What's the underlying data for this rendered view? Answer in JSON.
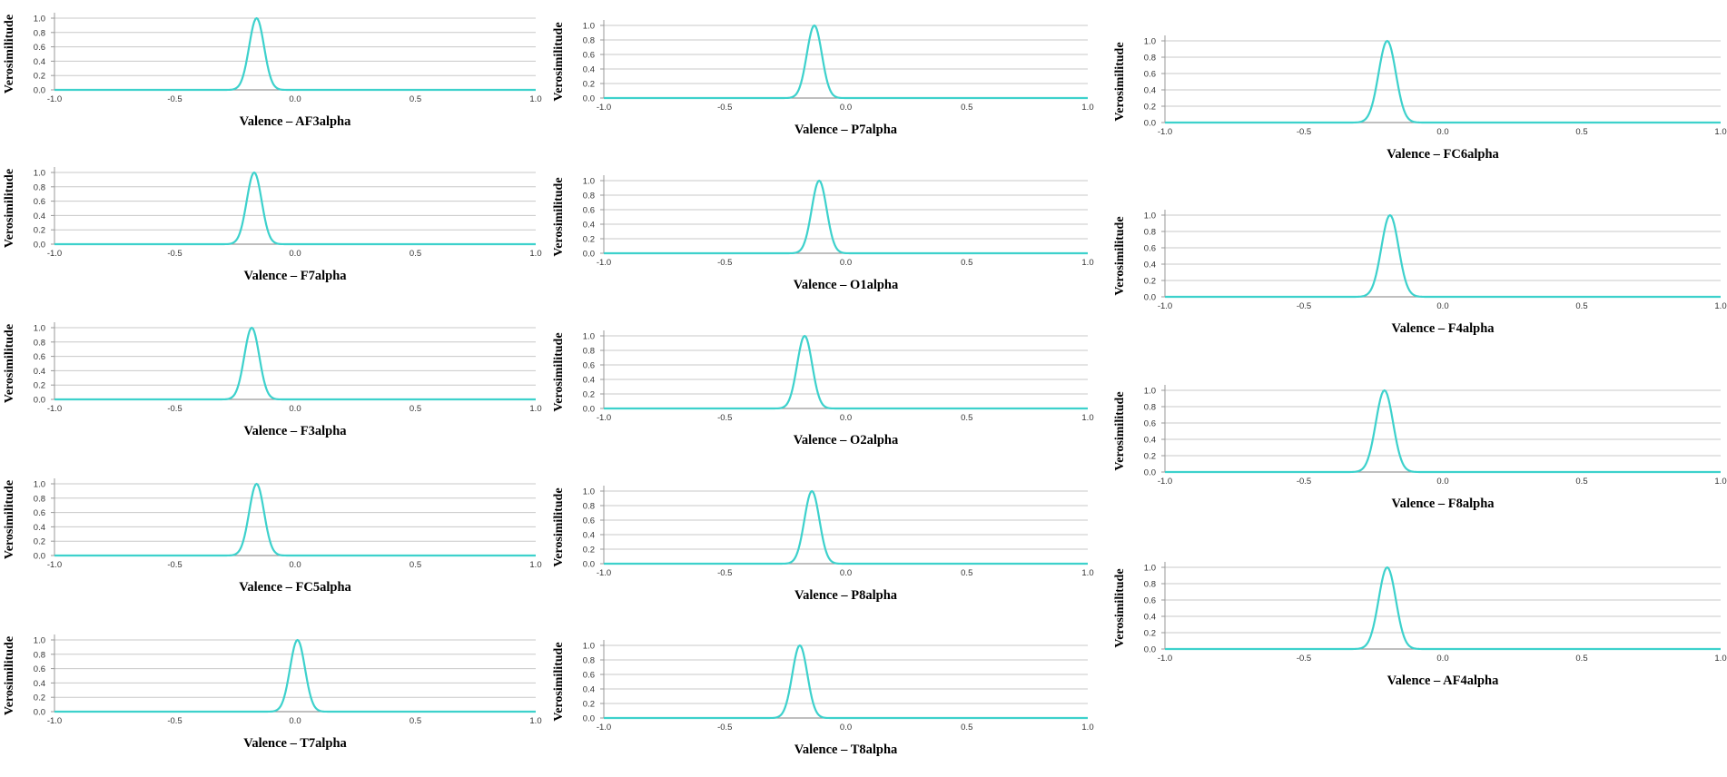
{
  "colors": {
    "curve": "#3dd1cc",
    "grid": "#c8c8c8",
    "axis": "#999999"
  },
  "chart_data": [
    {
      "type": "line",
      "panel": "AF3alpha",
      "xlabel": "Valence – AF3alpha",
      "ylabel": "Verosimilitude",
      "xlim": [
        -1.0,
        1.0
      ],
      "ylim": [
        0,
        1.0
      ],
      "xticks": [
        "-1.0",
        "-0.5",
        "0.0",
        "0.5",
        "1.0"
      ],
      "yticks": [
        "0.0",
        "0.2",
        "0.4",
        "0.6",
        "0.8",
        "1.0"
      ],
      "grid": true,
      "peak_x": -0.16,
      "peak_y": 1.0
    },
    {
      "type": "line",
      "panel": "F7alpha",
      "xlabel": "Valence – F7alpha",
      "ylabel": "Verosimilitude",
      "xlim": [
        -1.0,
        1.0
      ],
      "ylim": [
        0,
        1.0
      ],
      "xticks": [
        "-1.0",
        "-0.5",
        "0.0",
        "0.5",
        "1.0"
      ],
      "yticks": [
        "0.0",
        "0.2",
        "0.4",
        "0.6",
        "0.8",
        "1.0"
      ],
      "grid": true,
      "peak_x": -0.17,
      "peak_y": 1.0
    },
    {
      "type": "line",
      "panel": "F3alpha",
      "xlabel": "Valence – F3alpha",
      "ylabel": "Verosimilitude",
      "xlim": [
        -1.0,
        1.0
      ],
      "ylim": [
        0,
        1.0
      ],
      "xticks": [
        "-1.0",
        "-0.5",
        "0.0",
        "0.5",
        "1.0"
      ],
      "yticks": [
        "0.0",
        "0.2",
        "0.4",
        "0.6",
        "0.8",
        "1.0"
      ],
      "grid": true,
      "peak_x": -0.18,
      "peak_y": 1.0
    },
    {
      "type": "line",
      "panel": "FC5alpha",
      "xlabel": "Valence – FC5alpha",
      "ylabel": "Verosimilitude",
      "xlim": [
        -1.0,
        1.0
      ],
      "ylim": [
        0,
        1.0
      ],
      "xticks": [
        "-1.0",
        "-0.5",
        "0.0",
        "0.5",
        "1.0"
      ],
      "yticks": [
        "0.0",
        "0.2",
        "0.4",
        "0.6",
        "0.8",
        "1.0"
      ],
      "grid": true,
      "peak_x": -0.16,
      "peak_y": 1.0
    },
    {
      "type": "line",
      "panel": "T7alpha",
      "xlabel": "Valence – T7alpha",
      "ylabel": "Verosimilitude",
      "xlim": [
        -1.0,
        1.0
      ],
      "ylim": [
        0,
        1.0
      ],
      "xticks": [
        "-1.0",
        "-0.5",
        "0.0",
        "0.5",
        "1.0"
      ],
      "yticks": [
        "0.0",
        "0.2",
        "0.4",
        "0.6",
        "0.8",
        "1.0"
      ],
      "grid": true,
      "peak_x": 0.01,
      "peak_y": 1.0
    },
    {
      "type": "line",
      "panel": "P7alpha",
      "xlabel": "Valence – P7alpha",
      "ylabel": "Verosimilitude",
      "xlim": [
        -1.0,
        1.0
      ],
      "ylim": [
        0,
        1.0
      ],
      "xticks": [
        "-1.0",
        "-0.5",
        "0.0",
        "0.5",
        "1.0"
      ],
      "yticks": [
        "0.0",
        "0.2",
        "0.4",
        "0.6",
        "0.8",
        "1.0"
      ],
      "grid": true,
      "peak_x": -0.13,
      "peak_y": 1.0
    },
    {
      "type": "line",
      "panel": "O1alpha",
      "xlabel": "Valence – O1alpha",
      "ylabel": "Verosimilitude",
      "xlim": [
        -1.0,
        1.0
      ],
      "ylim": [
        0,
        1.0
      ],
      "xticks": [
        "-1.0",
        "-0.5",
        "0.0",
        "0.5",
        "1.0"
      ],
      "yticks": [
        "0.0",
        "0.2",
        "0.4",
        "0.6",
        "0.8",
        "1.0"
      ],
      "grid": true,
      "peak_x": -0.11,
      "peak_y": 1.0
    },
    {
      "type": "line",
      "panel": "O2alpha",
      "xlabel": "Valence – O2alpha",
      "ylabel": "Verosimilitude",
      "xlim": [
        -1.0,
        1.0
      ],
      "ylim": [
        0,
        1.0
      ],
      "xticks": [
        "-1.0",
        "-0.5",
        "0.0",
        "0.5",
        "1.0"
      ],
      "yticks": [
        "0.0",
        "0.2",
        "0.4",
        "0.6",
        "0.8",
        "1.0"
      ],
      "grid": true,
      "peak_x": -0.17,
      "peak_y": 1.0
    },
    {
      "type": "line",
      "panel": "P8alpha",
      "xlabel": "Valence – P8alpha",
      "ylabel": "Verosimilitude",
      "xlim": [
        -1.0,
        1.0
      ],
      "ylim": [
        0,
        1.0
      ],
      "xticks": [
        "-1.0",
        "-0.5",
        "0.0",
        "0.5",
        "1.0"
      ],
      "yticks": [
        "0.0",
        "0.2",
        "0.4",
        "0.6",
        "0.8",
        "1.0"
      ],
      "grid": true,
      "peak_x": -0.14,
      "peak_y": 1.0
    },
    {
      "type": "line",
      "panel": "T8alpha",
      "xlabel": "Valence – T8alpha",
      "ylabel": "Verosimilitude",
      "xlim": [
        -1.0,
        1.0
      ],
      "ylim": [
        0,
        1.0
      ],
      "xticks": [
        "-1.0",
        "-0.5",
        "0.0",
        "0.5",
        "1.0"
      ],
      "yticks": [
        "0.0",
        "0.2",
        "0.4",
        "0.6",
        "0.8",
        "1.0"
      ],
      "grid": true,
      "peak_x": -0.19,
      "peak_y": 1.0
    },
    {
      "type": "line",
      "panel": "FC6alpha",
      "xlabel": "Valence – FC6alpha",
      "ylabel": "Verosimilitude",
      "xlim": [
        -1.0,
        1.0
      ],
      "ylim": [
        0,
        1.0
      ],
      "xticks": [
        "-1.0",
        "-0.5",
        "0.0",
        "0.5",
        "1.0"
      ],
      "yticks": [
        "0.0",
        "0.2",
        "0.4",
        "0.6",
        "0.8",
        "1.0"
      ],
      "grid": true,
      "peak_x": -0.2,
      "peak_y": 1.0
    },
    {
      "type": "line",
      "panel": "F4alpha",
      "xlabel": "Valence – F4alpha",
      "ylabel": "Verosimilitude",
      "xlim": [
        -1.0,
        1.0
      ],
      "ylim": [
        0,
        1.0
      ],
      "xticks": [
        "-1.0",
        "-0.5",
        "0.0",
        "0.5",
        "1.0"
      ],
      "yticks": [
        "0.0",
        "0.2",
        "0.4",
        "0.6",
        "0.8",
        "1.0"
      ],
      "grid": true,
      "peak_x": -0.19,
      "peak_y": 1.0
    },
    {
      "type": "line",
      "panel": "F8alpha",
      "xlabel": "Valence – F8alpha",
      "ylabel": "Verosimilitude",
      "xlim": [
        -1.0,
        1.0
      ],
      "ylim": [
        0,
        1.0
      ],
      "xticks": [
        "-1.0",
        "-0.5",
        "0.0",
        "0.5",
        "1.0"
      ],
      "yticks": [
        "0.0",
        "0.2",
        "0.4",
        "0.6",
        "0.8",
        "1.0"
      ],
      "grid": true,
      "peak_x": -0.21,
      "peak_y": 1.0
    },
    {
      "type": "line",
      "panel": "AF4alpha",
      "xlabel": "Valence – AF4alpha",
      "ylabel": "Verosimilitude",
      "xlim": [
        -1.0,
        1.0
      ],
      "ylim": [
        0,
        1.0
      ],
      "xticks": [
        "-1.0",
        "-0.5",
        "0.0",
        "0.5",
        "1.0"
      ],
      "yticks": [
        "0.0",
        "0.2",
        "0.4",
        "0.6",
        "0.8",
        "1.0"
      ],
      "grid": true,
      "peak_x": -0.2,
      "peak_y": 1.0
    }
  ]
}
